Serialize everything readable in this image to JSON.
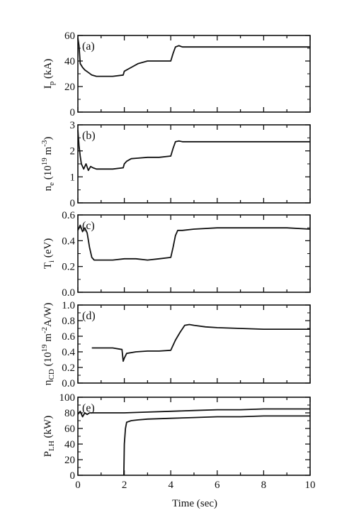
{
  "chart_data": [
    {
      "type": "line",
      "panel_label": "(a)",
      "ylabel": "I_p (kA)",
      "ylabel_parts": {
        "main": "I",
        "sub": "p",
        "rest": " (kA)"
      },
      "ylim": [
        0,
        60
      ],
      "yticks": [
        0,
        20,
        40,
        60
      ],
      "xlim": [
        0,
        10
      ],
      "series": [
        {
          "x": [
            0,
            0.05,
            0.1,
            0.2,
            0.3,
            0.45,
            0.6,
            0.8,
            1.0,
            1.5,
            1.95,
            2.0,
            2.1,
            2.3,
            2.6,
            3.0,
            3.5,
            4.0,
            4.1,
            4.2,
            4.35,
            4.5,
            5,
            6,
            7,
            8,
            9,
            10
          ],
          "y": [
            58,
            52,
            38,
            35,
            33,
            31,
            29,
            28,
            28,
            28,
            29,
            32,
            33,
            35,
            38,
            40,
            40,
            40,
            46,
            51,
            52,
            51,
            51,
            51,
            51,
            51,
            51,
            51
          ]
        }
      ]
    },
    {
      "type": "line",
      "panel_label": "(b)",
      "ylabel": "n̄_e (10^19 m^-3)",
      "ylabel_parts": {
        "main": "n",
        "sub": "e",
        "rest": " (10",
        "sup1": "19",
        "mid": " m",
        "sup2": "-3",
        "end": ")"
      },
      "ylim": [
        0,
        3
      ],
      "yticks": [
        0,
        1,
        2,
        3
      ],
      "xlim": [
        0,
        10
      ],
      "series": [
        {
          "x": [
            0,
            0.05,
            0.1,
            0.15,
            0.25,
            0.35,
            0.45,
            0.55,
            0.65,
            0.8,
            1.0,
            1.5,
            1.95,
            2.0,
            2.1,
            2.3,
            2.6,
            3.0,
            3.5,
            4.0,
            4.1,
            4.2,
            4.35,
            4.5,
            5,
            6,
            7,
            8,
            9,
            10
          ],
          "y": [
            2.8,
            2.2,
            1.8,
            1.5,
            1.3,
            1.5,
            1.25,
            1.4,
            1.35,
            1.3,
            1.3,
            1.3,
            1.35,
            1.5,
            1.6,
            1.7,
            1.72,
            1.75,
            1.75,
            1.8,
            2.1,
            2.35,
            2.38,
            2.35,
            2.35,
            2.35,
            2.35,
            2.35,
            2.35,
            2.35
          ]
        }
      ]
    },
    {
      "type": "line",
      "panel_label": "(c)",
      "ylabel": "T_i (eV)",
      "ylabel_parts": {
        "main": "T",
        "sub": "i",
        "rest": " (eV)"
      },
      "ylim": [
        0,
        0.6
      ],
      "yticks": [
        0.0,
        0.2,
        0.4,
        0.6
      ],
      "xlim": [
        0,
        10
      ],
      "series": [
        {
          "x": [
            0,
            0.1,
            0.2,
            0.3,
            0.4,
            0.5,
            0.6,
            0.7,
            1.0,
            1.5,
            2.0,
            2.5,
            3.0,
            3.5,
            4.0,
            4.1,
            4.2,
            4.3,
            4.5,
            5,
            6,
            7,
            8,
            9,
            10
          ],
          "y": [
            0.48,
            0.52,
            0.47,
            0.5,
            0.46,
            0.35,
            0.27,
            0.25,
            0.25,
            0.25,
            0.26,
            0.26,
            0.25,
            0.26,
            0.27,
            0.35,
            0.44,
            0.48,
            0.48,
            0.49,
            0.5,
            0.5,
            0.5,
            0.5,
            0.49
          ]
        }
      ]
    },
    {
      "type": "line",
      "panel_label": "(d)",
      "ylabel": "η_CD (10^19 m^-2 A/W)",
      "ylabel_parts": {
        "main": "η",
        "sub": "CD",
        "rest": " (10",
        "sup1": "19",
        "mid": " m",
        "sup2": "-2",
        "end": "A/W)"
      },
      "ylim": [
        0,
        1.0
      ],
      "yticks": [
        0.0,
        0.2,
        0.4,
        0.6,
        0.8,
        1.0
      ],
      "xlim": [
        0,
        10
      ],
      "series": [
        {
          "x": [
            0.6,
            1.0,
            1.5,
            1.9,
            1.95,
            2.0,
            2.1,
            2.5,
            3.0,
            3.5,
            4.0,
            4.2,
            4.4,
            4.6,
            4.8,
            5,
            5.5,
            6,
            7,
            8,
            9,
            10
          ],
          "y": [
            0.45,
            0.45,
            0.45,
            0.43,
            0.28,
            0.32,
            0.38,
            0.4,
            0.41,
            0.41,
            0.42,
            0.55,
            0.65,
            0.74,
            0.75,
            0.74,
            0.72,
            0.71,
            0.7,
            0.69,
            0.69,
            0.69
          ]
        }
      ]
    },
    {
      "type": "line",
      "panel_label": "(e)",
      "ylabel": "P_LH (kW)",
      "ylabel_parts": {
        "main": "P",
        "sub": "LH",
        "rest": " (kW)"
      },
      "ylim": [
        0,
        100
      ],
      "yticks": [
        0,
        20,
        40,
        60,
        80,
        100
      ],
      "xlim": [
        0,
        10
      ],
      "xticks": [
        0,
        2,
        4,
        6,
        8,
        10
      ],
      "xlabel": "Time (sec)",
      "series": [
        {
          "x": [
            0,
            0.1,
            0.2,
            0.3,
            0.4,
            0.5,
            1,
            2,
            3,
            4,
            5,
            6,
            7,
            8,
            9,
            10
          ],
          "y": [
            78,
            82,
            75,
            80,
            78,
            80,
            80,
            80,
            81,
            82,
            83,
            84,
            84,
            85,
            85,
            85
          ]
        },
        {
          "x": [
            1.98,
            2.0,
            2.05,
            2.1,
            2.3,
            2.6,
            3,
            4,
            5,
            6,
            7,
            8,
            9,
            10
          ],
          "y": [
            0,
            40,
            60,
            68,
            70,
            71,
            72,
            73,
            74,
            75,
            75,
            76,
            76,
            76
          ]
        }
      ]
    }
  ]
}
